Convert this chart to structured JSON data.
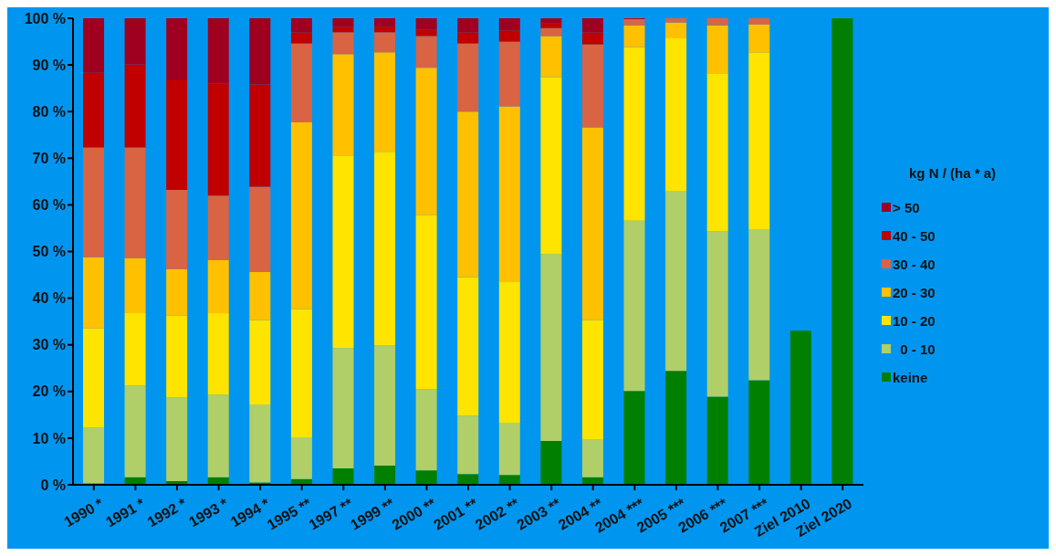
{
  "chart_data": {
    "type": "bar",
    "stacked": true,
    "legend_title": "kg N / (ha * a)",
    "legend": "right",
    "categories": [
      "1990 *",
      "1991 *",
      "1992 *",
      "1993 *",
      "1994 *",
      "1995 **",
      "1997 **",
      "1999 **",
      "2000 **",
      "2001 **",
      "2002 **",
      "2003 **",
      "2004 **",
      "2004 ***",
      "2005 ***",
      "2006 ***",
      "2007 ***",
      "Ziel 2010",
      "Ziel 2020"
    ],
    "ylim": [
      0,
      100
    ],
    "yticks": [
      {
        "value": 0,
        "label": "0 %"
      },
      {
        "value": 10,
        "label": "10 %"
      },
      {
        "value": 20,
        "label": "20 %"
      },
      {
        "value": 30,
        "label": "30 %"
      },
      {
        "value": 40,
        "label": "40 %"
      },
      {
        "value": 50,
        "label": "50 %"
      },
      {
        "value": 60,
        "label": "60 %"
      },
      {
        "value": 70,
        "label": "70 %"
      },
      {
        "value": 80,
        "label": "80 %"
      },
      {
        "value": 90,
        "label": "90 %"
      },
      {
        "value": 100,
        "label": "100 %"
      }
    ],
    "grid": false,
    "series": [
      {
        "name": "keine",
        "color": "#007f00",
        "values": [
          0.3,
          1.6,
          0.8,
          1.6,
          0.5,
          1.2,
          3.5,
          4.1,
          3.1,
          2.3,
          2.1,
          9.4,
          1.6,
          20.1,
          24.4,
          18.9,
          22.4,
          33,
          100
        ]
      },
      {
        "name": "  0 - 10",
        "color": "#b0cf68",
        "values": [
          12.0,
          19.7,
          17.9,
          17.7,
          16.7,
          9.0,
          25.8,
          25.8,
          17.4,
          12.5,
          11.2,
          40.0,
          8.2,
          36.5,
          38.6,
          35.4,
          32.4,
          0,
          0
        ]
      },
      {
        "name": "10 - 20",
        "color": "#ffe400",
        "values": [
          21.2,
          15.5,
          17.6,
          17.5,
          18.1,
          27.4,
          41.3,
          41.5,
          37.3,
          29.7,
          30.3,
          38.0,
          25.5,
          37.2,
          32.7,
          33.9,
          37.8,
          0,
          0
        ]
      },
      {
        "name": "20 - 30",
        "color": "#ffc000",
        "values": [
          15.3,
          11.8,
          9.9,
          11.4,
          10.3,
          40.1,
          21.7,
          21.3,
          31.6,
          35.5,
          37.5,
          8.8,
          41.3,
          4.7,
          3.4,
          10.3,
          6.1,
          0,
          0
        ]
      },
      {
        "name": "30 - 40",
        "color": "#d86444",
        "values": [
          23.5,
          23.7,
          17.0,
          13.8,
          18.3,
          16.9,
          4.7,
          4.3,
          6.8,
          14.6,
          13.9,
          1.7,
          17.8,
          1.3,
          0.9,
          1.5,
          1.3,
          0,
          0
        ]
      },
      {
        "name": "40 - 50",
        "color": "#c00000",
        "values": [
          16.0,
          17.8,
          23.5,
          24.0,
          21.9,
          2.4,
          1.2,
          1.2,
          1.4,
          2.4,
          2.4,
          1.1,
          2.6,
          0.2,
          0,
          0,
          0,
          0,
          0
        ]
      },
      {
        "name": "> 50",
        "color": "#a00020",
        "values": [
          11.7,
          9.9,
          13.3,
          14.0,
          14.2,
          3.0,
          1.8,
          1.8,
          2.4,
          3.0,
          2.6,
          1.0,
          3.0,
          0,
          0,
          0,
          0,
          0,
          0
        ]
      }
    ]
  }
}
